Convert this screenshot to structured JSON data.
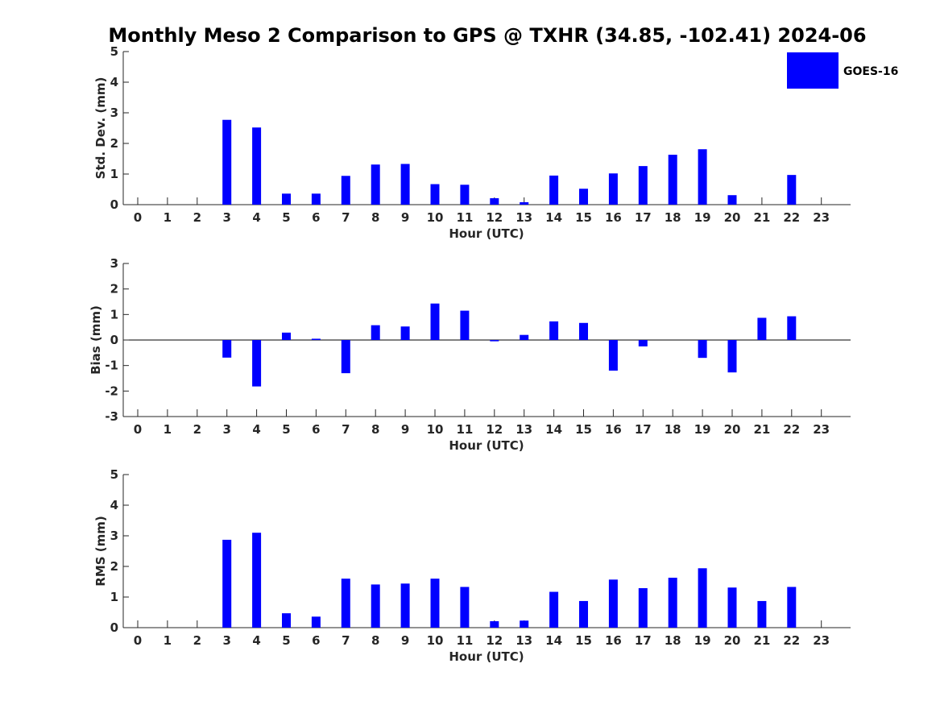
{
  "title": "Monthly Meso 2 Comparison to GPS @ TXHR (34.85, -102.41) 2024-06",
  "legend": {
    "label": "GOES-16",
    "color": "#0000ff"
  },
  "chart_data": [
    {
      "type": "bar",
      "ylabel": "Std. Dev. (mm)",
      "xlabel": "Hour (UTC)",
      "ylim": [
        0,
        5
      ],
      "yticks": [
        "0",
        "1",
        "2",
        "3",
        "4",
        "5"
      ],
      "categories": [
        "0",
        "1",
        "2",
        "3",
        "4",
        "5",
        "6",
        "7",
        "8",
        "9",
        "10",
        "11",
        "12",
        "13",
        "14",
        "15",
        "16",
        "17",
        "18",
        "19",
        "20",
        "21",
        "22",
        "23"
      ],
      "values": [
        null,
        null,
        null,
        2.77,
        2.52,
        0.36,
        0.36,
        0.94,
        1.31,
        1.33,
        0.67,
        0.65,
        0.21,
        0.08,
        0.95,
        0.52,
        1.02,
        1.26,
        1.63,
        1.81,
        0.31,
        null,
        0.97,
        null
      ],
      "color": "#0000ff"
    },
    {
      "type": "bar",
      "ylabel": "Bias (mm)",
      "xlabel": "Hour (UTC)",
      "ylim": [
        -3,
        3
      ],
      "yticks": [
        "-3",
        "-2",
        "-1",
        "0",
        "1",
        "2",
        "3"
      ],
      "categories": [
        "0",
        "1",
        "2",
        "3",
        "4",
        "5",
        "6",
        "7",
        "8",
        "9",
        "10",
        "11",
        "12",
        "13",
        "14",
        "15",
        "16",
        "17",
        "18",
        "19",
        "20",
        "21",
        "22",
        "23"
      ],
      "values": [
        null,
        null,
        null,
        -0.69,
        -1.82,
        0.29,
        0.05,
        -1.3,
        0.58,
        0.53,
        1.43,
        1.15,
        -0.05,
        0.2,
        0.73,
        0.67,
        -1.2,
        -0.25,
        null,
        -0.7,
        -1.27,
        0.87,
        0.93,
        null
      ],
      "color": "#0000ff"
    },
    {
      "type": "bar",
      "ylabel": "RMS (mm)",
      "xlabel": "Hour (UTC)",
      "ylim": [
        0,
        5
      ],
      "yticks": [
        "0",
        "1",
        "2",
        "3",
        "4",
        "5"
      ],
      "categories": [
        "0",
        "1",
        "2",
        "3",
        "4",
        "5",
        "6",
        "7",
        "8",
        "9",
        "10",
        "11",
        "12",
        "13",
        "14",
        "15",
        "16",
        "17",
        "18",
        "19",
        "20",
        "21",
        "22",
        "23"
      ],
      "values": [
        null,
        null,
        null,
        2.87,
        3.1,
        0.47,
        0.36,
        1.6,
        1.41,
        1.44,
        1.6,
        1.33,
        0.21,
        0.23,
        1.17,
        0.87,
        1.57,
        1.29,
        1.63,
        1.94,
        1.31,
        0.87,
        1.33,
        null
      ],
      "color": "#0000ff"
    }
  ]
}
